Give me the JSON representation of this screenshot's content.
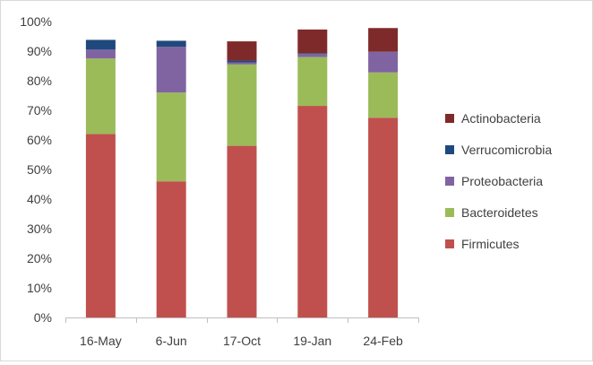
{
  "chart_data": {
    "type": "bar",
    "stacked": true,
    "categories": [
      "16-May",
      "6-Jun",
      "17-Oct",
      "19-Jan",
      "24-Feb"
    ],
    "ylim": [
      0,
      100
    ],
    "yticks": [
      "0%",
      "10%",
      "20%",
      "30%",
      "40%",
      "50%",
      "60%",
      "70%",
      "80%",
      "90%",
      "100%"
    ],
    "grid": false,
    "legend_position": "right",
    "series": [
      {
        "name": "Firmicutes",
        "color": "#c0504d",
        "values": [
          62,
          46,
          58,
          71.5,
          67.5
        ]
      },
      {
        "name": "Bacteroidetes",
        "color": "#9bbb59",
        "values": [
          25.5,
          30,
          27.5,
          16.5,
          15.3
        ]
      },
      {
        "name": "Proteobacteria",
        "color": "#8064a2",
        "values": [
          3,
          15.5,
          0.7,
          1,
          7
        ]
      },
      {
        "name": "Verrucomicrobia",
        "color": "#1f497d",
        "values": [
          3.3,
          2,
          0.6,
          0.3,
          0
        ]
      },
      {
        "name": "Actinobacteria",
        "color": "#7f2a2a",
        "values": [
          0,
          0,
          6.5,
          8,
          8
        ]
      }
    ]
  }
}
